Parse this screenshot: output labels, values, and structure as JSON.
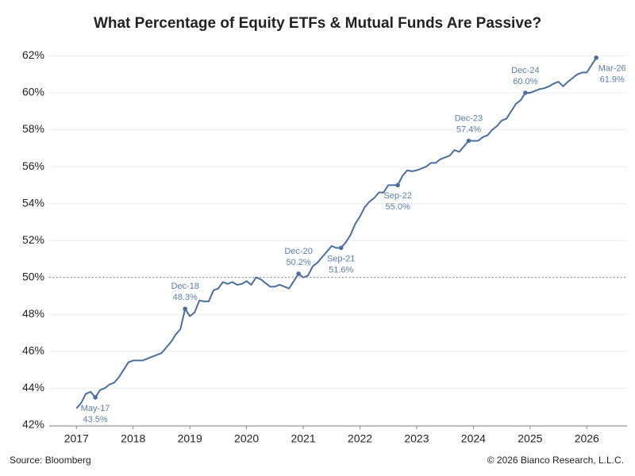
{
  "chart_data": {
    "type": "line",
    "title": "What Percentage of Equity ETFs & Mutual Funds Are Passive?",
    "source": "Source: Bloomberg",
    "copyright": "© 2026 Bianco Research, L.L.C.",
    "xlim": [
      2016.52,
      2026.71
    ],
    "xticks": [
      2017,
      2018,
      2019,
      2020,
      2021,
      2022,
      2023,
      2024,
      2025,
      2026
    ],
    "ylim": [
      41.95,
      62.75
    ],
    "yticks": [
      {
        "value": 42,
        "label": "42%"
      },
      {
        "value": 44,
        "label": "44%"
      },
      {
        "value": 46,
        "label": "46%"
      },
      {
        "value": 48,
        "label": "48%"
      },
      {
        "value": 50,
        "label": "50%"
      },
      {
        "value": 52,
        "label": "52%"
      },
      {
        "value": 54,
        "label": "54%"
      },
      {
        "value": 56,
        "label": "56%"
      },
      {
        "value": 58,
        "label": "58%"
      },
      {
        "value": 60,
        "label": "60%"
      },
      {
        "value": 62,
        "label": "62%"
      }
    ],
    "grid": true,
    "reference_line": 50,
    "x": [
      "2017-01",
      "2017-02",
      "2017-03",
      "2017-04",
      "2017-05",
      "2017-06",
      "2017-07",
      "2017-08",
      "2017-09",
      "2017-10",
      "2017-11",
      "2017-12",
      "2018-01",
      "2018-02",
      "2018-03",
      "2018-04",
      "2018-05",
      "2018-06",
      "2018-07",
      "2018-08",
      "2018-09",
      "2018-10",
      "2018-11",
      "2018-12",
      "2019-01",
      "2019-02",
      "2019-03",
      "2019-04",
      "2019-05",
      "2019-06",
      "2019-07",
      "2019-08",
      "2019-09",
      "2019-10",
      "2019-11",
      "2019-12",
      "2020-01",
      "2020-02",
      "2020-03",
      "2020-04",
      "2020-05",
      "2020-06",
      "2020-07",
      "2020-08",
      "2020-09",
      "2020-10",
      "2020-11",
      "2020-12",
      "2021-01",
      "2021-02",
      "2021-03",
      "2021-04",
      "2021-05",
      "2021-06",
      "2021-07",
      "2021-08",
      "2021-09",
      "2021-10",
      "2021-11",
      "2021-12",
      "2022-01",
      "2022-02",
      "2022-03",
      "2022-04",
      "2022-05",
      "2022-06",
      "2022-07",
      "2022-08",
      "2022-09",
      "2022-10",
      "2022-11",
      "2022-12",
      "2023-01",
      "2023-02",
      "2023-03",
      "2023-04",
      "2023-05",
      "2023-06",
      "2023-07",
      "2023-08",
      "2023-09",
      "2023-10",
      "2023-11",
      "2023-12",
      "2024-01",
      "2024-02",
      "2024-03",
      "2024-04",
      "2024-05",
      "2024-06",
      "2024-07",
      "2024-08",
      "2024-09",
      "2024-10",
      "2024-11",
      "2024-12",
      "2025-01",
      "2025-02",
      "2025-03",
      "2025-04",
      "2025-05",
      "2025-06",
      "2025-07",
      "2025-08",
      "2025-09",
      "2025-10",
      "2025-11",
      "2025-12",
      "2026-01",
      "2026-02",
      "2026-03"
    ],
    "series": [
      {
        "color": "#4a6f9c",
        "values": [
          42.9,
          43.2,
          43.7,
          43.8,
          43.5,
          43.9,
          44.0,
          44.2,
          44.3,
          44.6,
          45.0,
          45.4,
          45.5,
          45.5,
          45.5,
          45.6,
          45.7,
          45.8,
          45.9,
          46.2,
          46.5,
          46.9,
          47.2,
          48.3,
          47.9,
          48.1,
          48.75,
          48.7,
          48.7,
          49.3,
          49.4,
          49.75,
          49.65,
          49.75,
          49.6,
          49.65,
          49.8,
          49.6,
          50.0,
          49.9,
          49.7,
          49.5,
          49.5,
          49.6,
          49.5,
          49.4,
          49.8,
          50.2,
          50.0,
          50.1,
          50.6,
          50.8,
          51.1,
          51.4,
          51.7,
          51.6,
          51.6,
          51.9,
          52.3,
          52.9,
          53.3,
          53.8,
          54.1,
          54.3,
          54.6,
          54.6,
          55.0,
          55.0,
          55.0,
          55.5,
          55.8,
          55.75,
          55.8,
          55.9,
          56.0,
          56.2,
          56.2,
          56.4,
          56.5,
          56.6,
          56.9,
          56.8,
          57.1,
          57.4,
          57.4,
          57.4,
          57.6,
          57.7,
          58.0,
          58.2,
          58.5,
          58.6,
          59.0,
          59.4,
          59.6,
          60.0,
          60.0,
          60.1,
          60.2,
          60.25,
          60.35,
          60.5,
          60.6,
          60.35,
          60.6,
          60.8,
          61.0,
          61.1,
          61.1,
          61.5,
          61.9
        ],
        "date_labels": [
          null,
          null,
          null,
          null,
          "May-17",
          null,
          null,
          null,
          null,
          null,
          null,
          null,
          null,
          null,
          null,
          null,
          null,
          null,
          null,
          null,
          null,
          null,
          null,
          "Dec-18",
          null,
          null,
          null,
          null,
          null,
          null,
          null,
          null,
          null,
          null,
          null,
          null,
          null,
          null,
          null,
          null,
          null,
          null,
          null,
          null,
          null,
          null,
          null,
          "Dec-20",
          null,
          null,
          null,
          null,
          null,
          null,
          null,
          null,
          "Sep-21",
          null,
          null,
          null,
          null,
          null,
          null,
          null,
          null,
          null,
          null,
          null,
          "Sep-22",
          null,
          null,
          null,
          null,
          null,
          null,
          null,
          null,
          null,
          null,
          null,
          null,
          null,
          null,
          "Dec-23",
          null,
          null,
          null,
          null,
          null,
          null,
          null,
          null,
          null,
          null,
          null,
          "Dec-24",
          null,
          null,
          null,
          null,
          null,
          null,
          null,
          null,
          null,
          null,
          null,
          null,
          null,
          null,
          "Mar-26"
        ],
        "value_labels": [
          null,
          null,
          null,
          null,
          "43.5%",
          null,
          null,
          null,
          null,
          null,
          null,
          null,
          null,
          null,
          null,
          null,
          null,
          null,
          null,
          null,
          null,
          null,
          null,
          "48.3%",
          null,
          null,
          null,
          null,
          null,
          null,
          null,
          null,
          null,
          null,
          null,
          null,
          null,
          null,
          null,
          null,
          null,
          null,
          null,
          null,
          null,
          null,
          null,
          "50.2%",
          null,
          null,
          null,
          null,
          null,
          null,
          null,
          null,
          "51.6%",
          null,
          null,
          null,
          null,
          null,
          null,
          null,
          null,
          null,
          null,
          null,
          "55.0%",
          null,
          null,
          null,
          null,
          null,
          null,
          null,
          null,
          null,
          null,
          null,
          null,
          null,
          null,
          "57.4%",
          null,
          null,
          null,
          null,
          null,
          null,
          null,
          null,
          null,
          null,
          null,
          "60.0%",
          null,
          null,
          null,
          null,
          null,
          null,
          null,
          null,
          null,
          null,
          null,
          null,
          null,
          null,
          "61.9%"
        ]
      }
    ]
  }
}
